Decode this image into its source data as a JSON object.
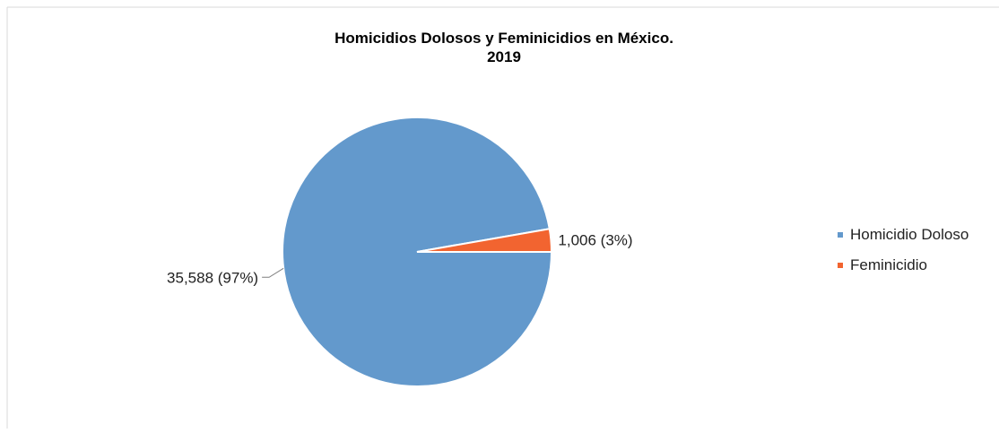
{
  "chart_data": {
    "type": "pie",
    "title": "Homicidios Dolosos y Feminicidios en México.",
    "subtitle": "2019",
    "categories": [
      "Homicidio Doloso",
      "Feminicidio"
    ],
    "values": [
      35588,
      1006
    ],
    "percentages": [
      97,
      3
    ],
    "data_labels": [
      "35,588 (97%)",
      "1,006 (3%)"
    ],
    "colors": [
      "#6399CC",
      "#F26430"
    ],
    "legend": {
      "position": "right",
      "entries": [
        "Homicidio Doloso",
        "Feminicidio"
      ]
    }
  }
}
